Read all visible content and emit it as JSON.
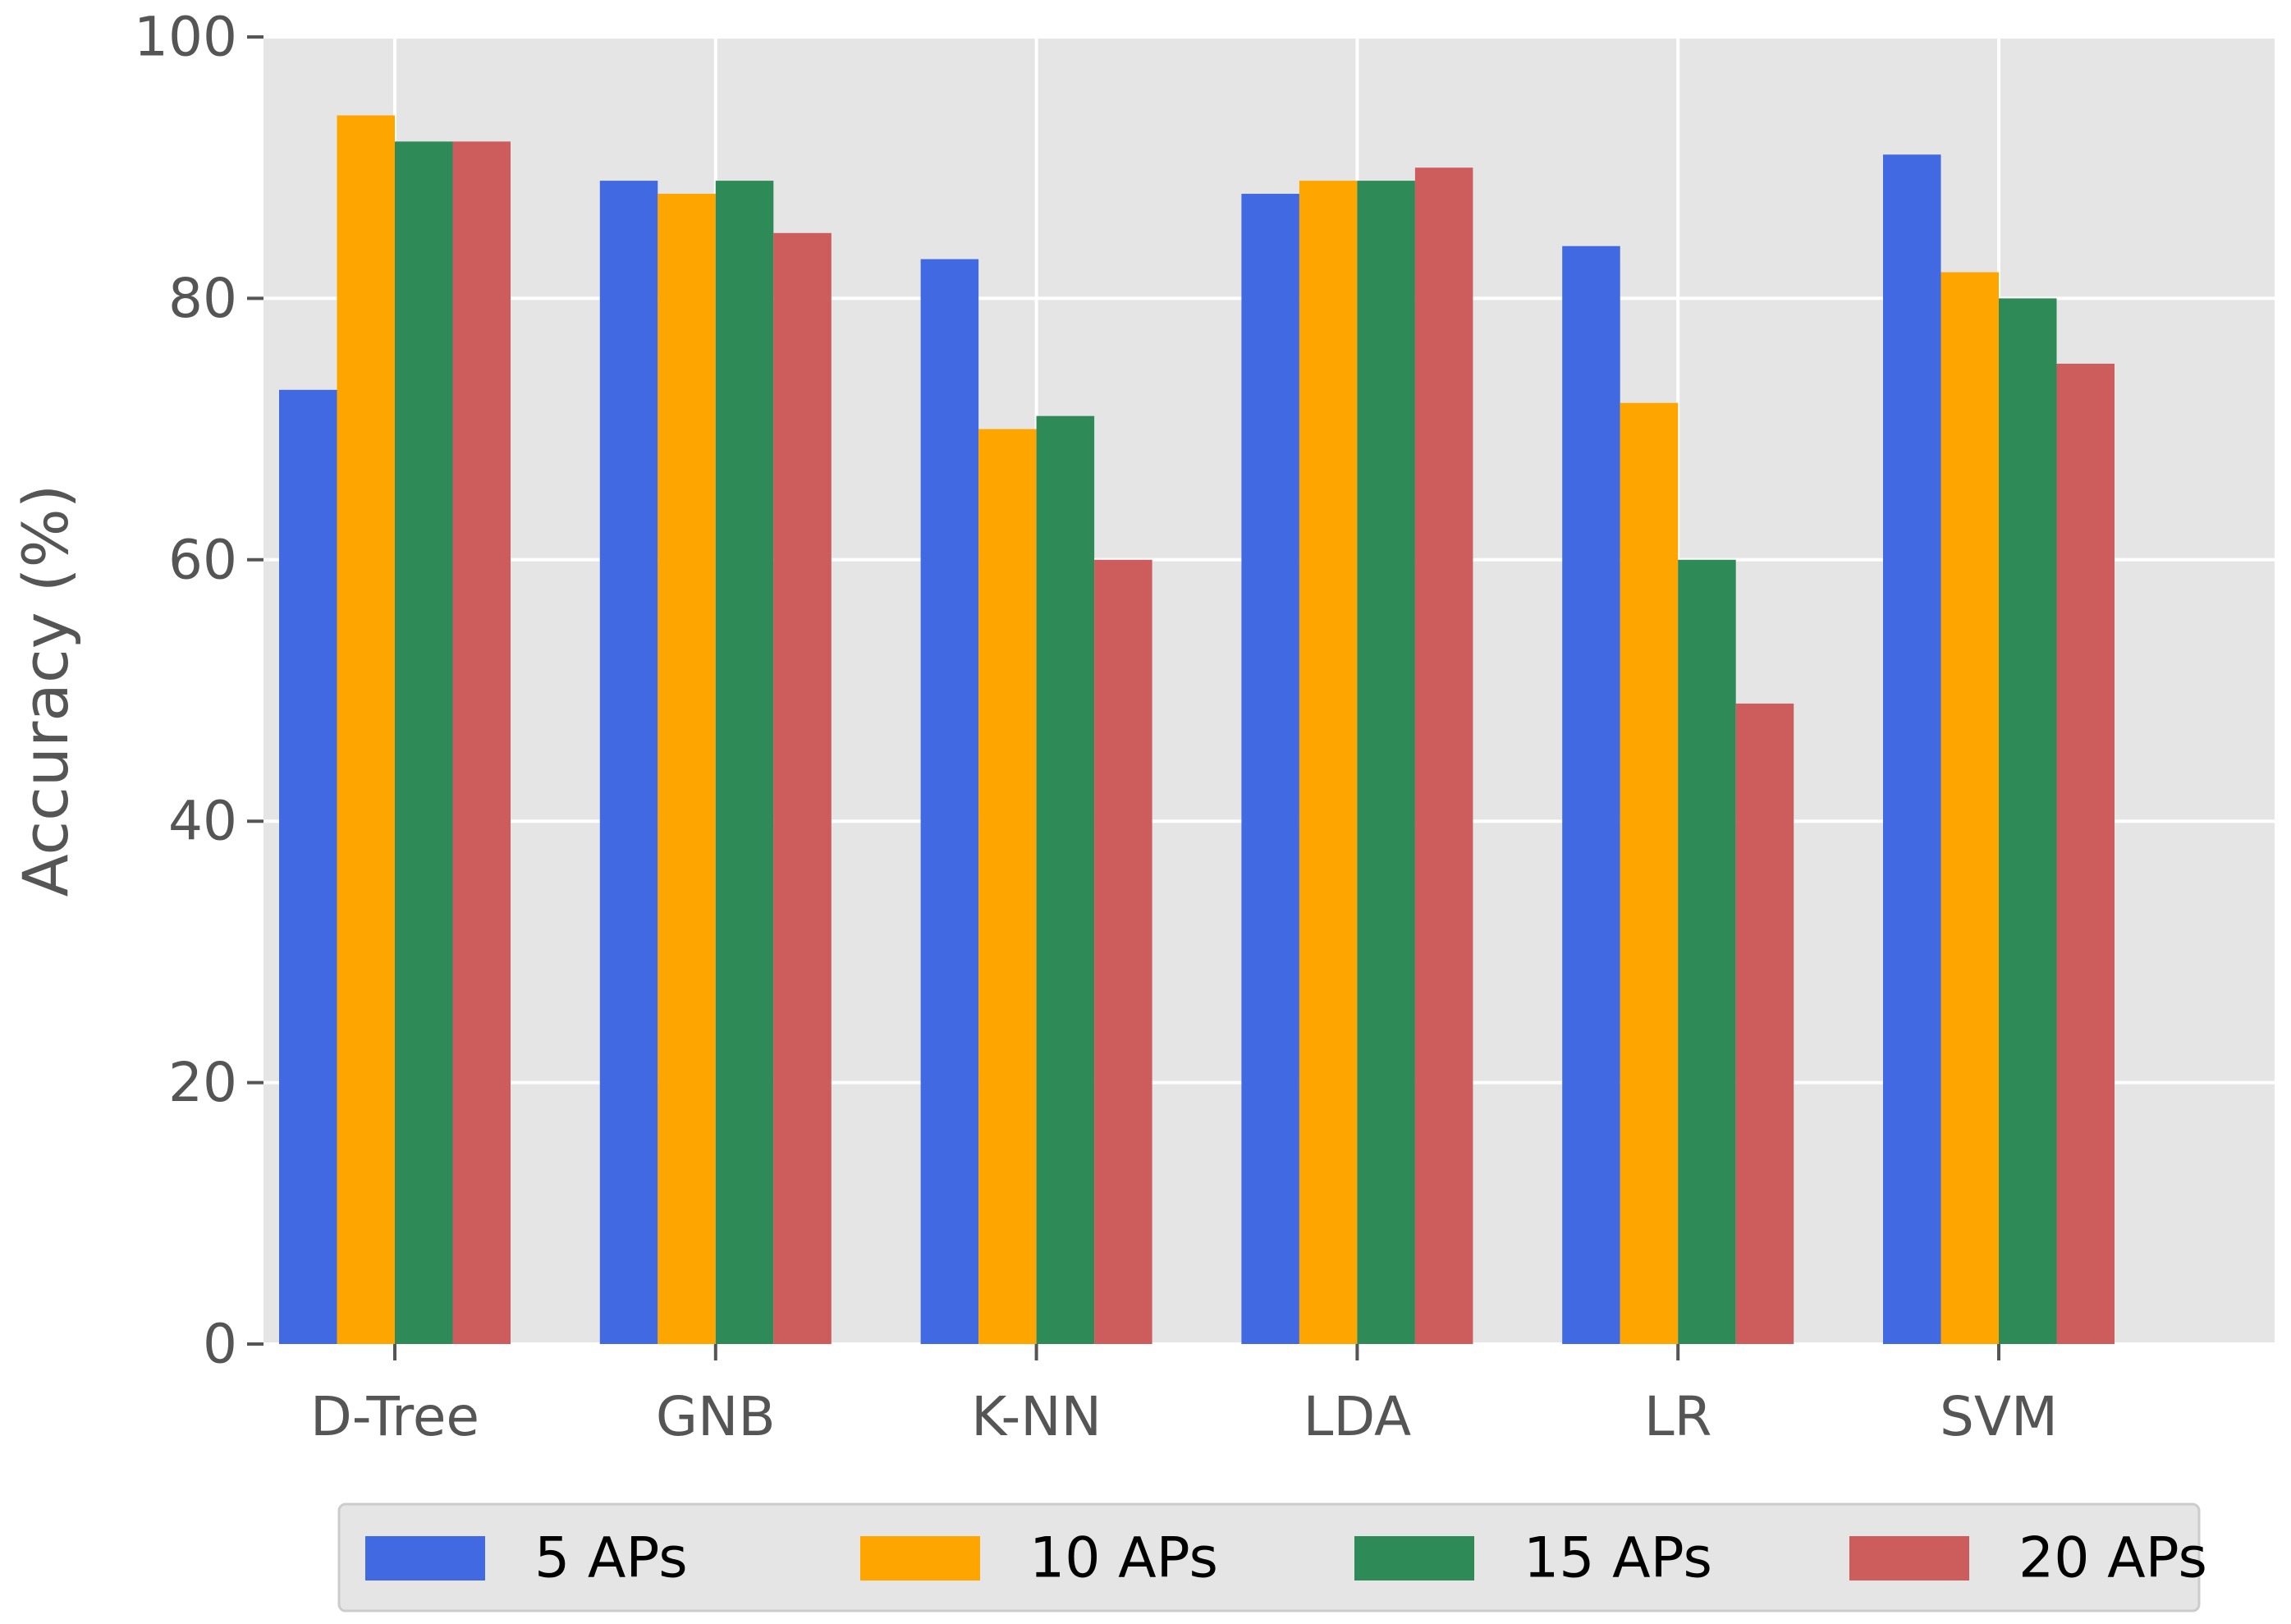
{
  "chart_data": {
    "type": "bar",
    "categories": [
      "D-Tree",
      "GNB",
      "K-NN",
      "LDA",
      "LR",
      "SVM"
    ],
    "series": [
      {
        "name": "5 APs",
        "color": "#4169e1",
        "values": [
          73,
          89,
          83,
          88,
          84,
          91
        ]
      },
      {
        "name": "10 APs",
        "color": "#ffa500",
        "values": [
          94,
          88,
          70,
          89,
          72,
          82
        ]
      },
      {
        "name": "15 APs",
        "color": "#2e8b57",
        "values": [
          92,
          89,
          71,
          89,
          60,
          80
        ]
      },
      {
        "name": "20 APs",
        "color": "#cd5c5c",
        "values": [
          92,
          85,
          60,
          90,
          49,
          75
        ]
      }
    ],
    "ylabel": "Accuracy (%)",
    "xlabel": "",
    "ylim": [
      0,
      100
    ],
    "yticks": [
      0,
      20,
      40,
      60,
      80,
      100
    ],
    "grid": true,
    "legend": "bottom",
    "background": "#e5e5e5"
  }
}
